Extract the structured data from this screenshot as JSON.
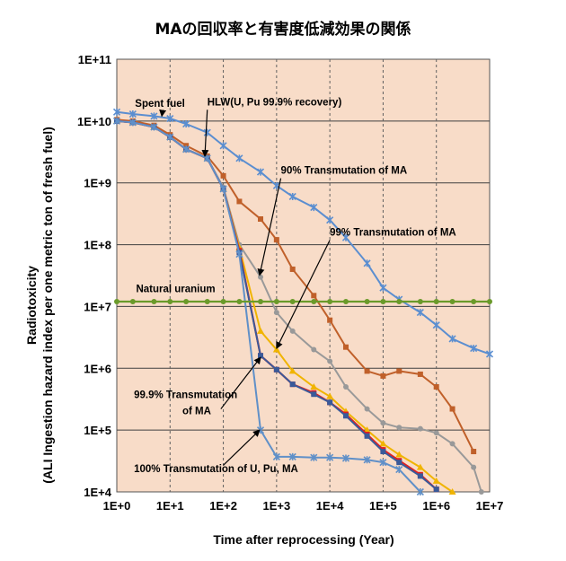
{
  "chart_data": {
    "type": "line",
    "title": "MAの回収率と有害度低減効果の関係",
    "xlabel": "Time after reprocessing (Year)",
    "ylabel_line1": "Radiotoxicity",
    "ylabel_line2": "(ALI Ingestion hazard index per one metric ton of fresh fuel)",
    "x_scale": "log",
    "y_scale": "log",
    "xlim": [
      1,
      10000000
    ],
    "ylim": [
      10000,
      100000000000
    ],
    "x_ticks": [
      "1E+0",
      "1E+1",
      "1E+2",
      "1E+3",
      "1E+4",
      "1E+5",
      "1E+6",
      "1E+7"
    ],
    "y_ticks": [
      "1E+11",
      "1E+10",
      "1E+9",
      "1E+8",
      "1E+7",
      "1E+6",
      "1E+5",
      "1E+4"
    ],
    "grid": "horizontal solid, vertical dashed",
    "plot_background": "#f8dcc8",
    "series": [
      {
        "id": "spent-fuel",
        "color": "#5b8ed0",
        "marker": "star",
        "points": [
          [
            1,
            14000000000.0
          ],
          [
            2,
            13000000000.0
          ],
          [
            5,
            12000000000.0
          ],
          [
            10,
            11000000000.0
          ],
          [
            20,
            9000000000.0
          ],
          [
            50,
            6500000000.0
          ],
          [
            100,
            4000000000.0
          ],
          [
            200,
            2500000000.0
          ],
          [
            500,
            1500000000.0
          ],
          [
            1000,
            900000000.0
          ],
          [
            2000,
            600000000.0
          ],
          [
            5000,
            400000000.0
          ],
          [
            10000,
            250000000.0
          ],
          [
            20000,
            130000000.0
          ],
          [
            50000,
            50000000.0
          ],
          [
            100000,
            20000000.0
          ],
          [
            200000,
            13000000.0
          ],
          [
            500000,
            8000000.0
          ],
          [
            1000000,
            5000000.0
          ],
          [
            2000000,
            3000000.0
          ],
          [
            5000000,
            2100000.0
          ],
          [
            10000000,
            1700000.0
          ]
        ]
      },
      {
        "id": "hlw",
        "color": "#c0602a",
        "marker": "square",
        "points": [
          [
            1,
            10500000000.0
          ],
          [
            2,
            10000000000.0
          ],
          [
            5,
            8500000000.0
          ],
          [
            10,
            6000000000.0
          ],
          [
            20,
            4000000000.0
          ],
          [
            50,
            2700000000.0
          ],
          [
            100,
            1300000000.0
          ],
          [
            200,
            500000000.0
          ],
          [
            500,
            260000000.0
          ],
          [
            1000,
            120000000.0
          ],
          [
            2000,
            40000000.0
          ],
          [
            5000,
            15000000.0
          ],
          [
            10000,
            6000000.0
          ],
          [
            20000,
            2200000.0
          ],
          [
            50000,
            900000.0
          ],
          [
            100000,
            750000.0
          ],
          [
            200000,
            900000.0
          ],
          [
            500000,
            800000.0
          ],
          [
            1000000,
            500000.0
          ],
          [
            2000000,
            220000.0
          ],
          [
            5000000,
            45000.0
          ]
        ]
      },
      {
        "id": "ma-90",
        "color": "#999999",
        "marker": "circle",
        "points": [
          [
            1,
            10000000000.0
          ],
          [
            2,
            9500000000.0
          ],
          [
            5,
            8000000000.0
          ],
          [
            10,
            5500000000.0
          ],
          [
            20,
            3500000000.0
          ],
          [
            50,
            2500000000.0
          ],
          [
            100,
            850000000.0
          ],
          [
            200,
            100000000.0
          ],
          [
            500,
            30000000.0
          ],
          [
            1000,
            8000000.0
          ],
          [
            2000,
            4000000.0
          ],
          [
            5000,
            2000000.0
          ],
          [
            10000,
            1300000.0
          ],
          [
            20000,
            500000.0
          ],
          [
            50000,
            220000.0
          ],
          [
            100000,
            130000.0
          ],
          [
            200000,
            110000.0
          ],
          [
            500000,
            105000.0
          ],
          [
            1000000,
            90000.0
          ],
          [
            2000000,
            60000.0
          ],
          [
            5000000,
            25000.0
          ],
          [
            7000000,
            10000.0
          ]
        ]
      },
      {
        "id": "ma-99",
        "color": "#f0b400",
        "marker": "tri",
        "points": [
          [
            1,
            10000000000.0
          ],
          [
            2,
            9500000000.0
          ],
          [
            5,
            8000000000.0
          ],
          [
            10,
            5500000000.0
          ],
          [
            20,
            3500000000.0
          ],
          [
            50,
            2500000000.0
          ],
          [
            100,
            800000000.0
          ],
          [
            200,
            90000000.0
          ],
          [
            500,
            4000000.0
          ],
          [
            1000,
            2000000.0
          ],
          [
            2000,
            900000.0
          ],
          [
            5000,
            500000.0
          ],
          [
            10000,
            350000.0
          ],
          [
            20000,
            200000.0
          ],
          [
            50000,
            100000.0
          ],
          [
            100000,
            60000.0
          ],
          [
            200000,
            40000.0
          ],
          [
            500000,
            25000.0
          ],
          [
            1000000,
            15000.0
          ],
          [
            2000000,
            10000.0
          ]
        ]
      },
      {
        "id": "ma-999",
        "color": "#e02020",
        "marker": "square",
        "points": [
          [
            1,
            10000000000.0
          ],
          [
            2,
            9500000000.0
          ],
          [
            5,
            8000000000.0
          ],
          [
            10,
            5500000000.0
          ],
          [
            20,
            3500000000.0
          ],
          [
            50,
            2500000000.0
          ],
          [
            100,
            800000000.0
          ],
          [
            200,
            80000000.0
          ],
          [
            500,
            1600000.0
          ],
          [
            1000,
            950000.0
          ],
          [
            2000,
            550000.0
          ],
          [
            5000,
            400000.0
          ],
          [
            10000,
            280000.0
          ],
          [
            20000,
            180000.0
          ],
          [
            50000,
            85000.0
          ],
          [
            100000,
            48000.0
          ],
          [
            200000,
            32000.0
          ],
          [
            500000,
            19000.0
          ],
          [
            1000000,
            11000.0
          ]
        ]
      },
      {
        "id": "ma-100",
        "color": "#3a5a9a",
        "marker": "square",
        "points": [
          [
            1,
            10000000000.0
          ],
          [
            2,
            9500000000.0
          ],
          [
            5,
            8000000000.0
          ],
          [
            10,
            5500000000.0
          ],
          [
            20,
            3500000000.0
          ],
          [
            50,
            2500000000.0
          ],
          [
            100,
            800000000.0
          ],
          [
            200,
            75000000.0
          ],
          [
            500,
            1600000.0
          ],
          [
            1000,
            950000.0
          ],
          [
            2000,
            550000.0
          ],
          [
            5000,
            380000.0
          ],
          [
            10000,
            280000.0
          ],
          [
            20000,
            170000.0
          ],
          [
            50000,
            80000.0
          ],
          [
            100000,
            45000.0
          ],
          [
            200000,
            30000.0
          ],
          [
            500000,
            18000.0
          ],
          [
            1000000,
            11000.0
          ]
        ]
      },
      {
        "id": "full-100",
        "color": "#6090c8",
        "marker": "star",
        "points": [
          [
            1,
            10000000000.0
          ],
          [
            2,
            9500000000.0
          ],
          [
            5,
            8000000000.0
          ],
          [
            10,
            5500000000.0
          ],
          [
            20,
            3500000000.0
          ],
          [
            50,
            2500000000.0
          ],
          [
            100,
            800000000.0
          ],
          [
            200,
            70000000.0
          ],
          [
            500,
            100000.0
          ],
          [
            1000,
            37000.0
          ],
          [
            2000,
            37000.0
          ],
          [
            5000,
            36000.0
          ],
          [
            10000,
            36000.0
          ],
          [
            20000,
            35000.0
          ],
          [
            50000,
            33000.0
          ],
          [
            100000,
            30000.0
          ],
          [
            200000,
            23000.0
          ],
          [
            500000,
            10000.0
          ]
        ]
      },
      {
        "id": "natural-uranium",
        "color": "#6a9a2a",
        "marker": "circle",
        "points": [
          [
            1,
            12000000.0
          ],
          [
            2,
            12000000.0
          ],
          [
            5,
            12000000.0
          ],
          [
            10,
            12000000.0
          ],
          [
            20,
            12000000.0
          ],
          [
            50,
            12000000.0
          ],
          [
            100,
            12000000.0
          ],
          [
            200,
            12000000.0
          ],
          [
            500,
            12000000.0
          ],
          [
            1000,
            12000000.0
          ],
          [
            2000,
            12000000.0
          ],
          [
            5000,
            12000000.0
          ],
          [
            10000,
            12000000.0
          ],
          [
            20000,
            12000000.0
          ],
          [
            50000,
            12000000.0
          ],
          [
            100000,
            12000000.0
          ],
          [
            200000,
            12000000.0
          ],
          [
            500000,
            12000000.0
          ],
          [
            1000000,
            12000000.0
          ],
          [
            2000000,
            12000000.0
          ],
          [
            5000000,
            12000000.0
          ],
          [
            10000000,
            12000000.0
          ]
        ]
      }
    ],
    "annotations": [
      {
        "id": "spent-fuel",
        "text": "Spent fuel",
        "x": 2.2,
        "y": 17000000000.0,
        "arrow_to": [
          7,
          12000000000.0
        ]
      },
      {
        "id": "hlw",
        "text": "HLW(U, Pu 99.9% recovery)",
        "x": 50,
        "y": 18000000000.0,
        "arrow_to": [
          45,
          2700000000.0
        ]
      },
      {
        "id": "ma-90",
        "text": "90% Transmutation of MA",
        "x": 1200,
        "y": 1400000000.0,
        "arrow_to": [
          480,
          32000000.0
        ]
      },
      {
        "id": "ma-99",
        "text": "99% Transmutation of MA",
        "x": 10000,
        "y": 140000000.0,
        "arrow_to": [
          1000,
          2100000.0
        ]
      },
      {
        "id": "natural-uranium",
        "text": "Natural uranium",
        "x": 2.3,
        "y": 17000000.0
      },
      {
        "id": "ma-999-l1",
        "text": "99.9% Transmutation",
        "x": 2.1,
        "y": 330000.0
      },
      {
        "id": "ma-999-l2",
        "text": "of MA",
        "x": 17,
        "y": 180000.0,
        "arrow_to": [
          500,
          1500000.0
        ],
        "arrow_from": [
          90,
          220000.0
        ]
      },
      {
        "id": "full-100",
        "text": "100% Transmutation of U, Pu, MA",
        "x": 2.1,
        "y": 21000.0,
        "arrow_to": [
          480,
          100000.0
        ],
        "arrow_from": [
          100,
          27000.0
        ]
      }
    ]
  }
}
